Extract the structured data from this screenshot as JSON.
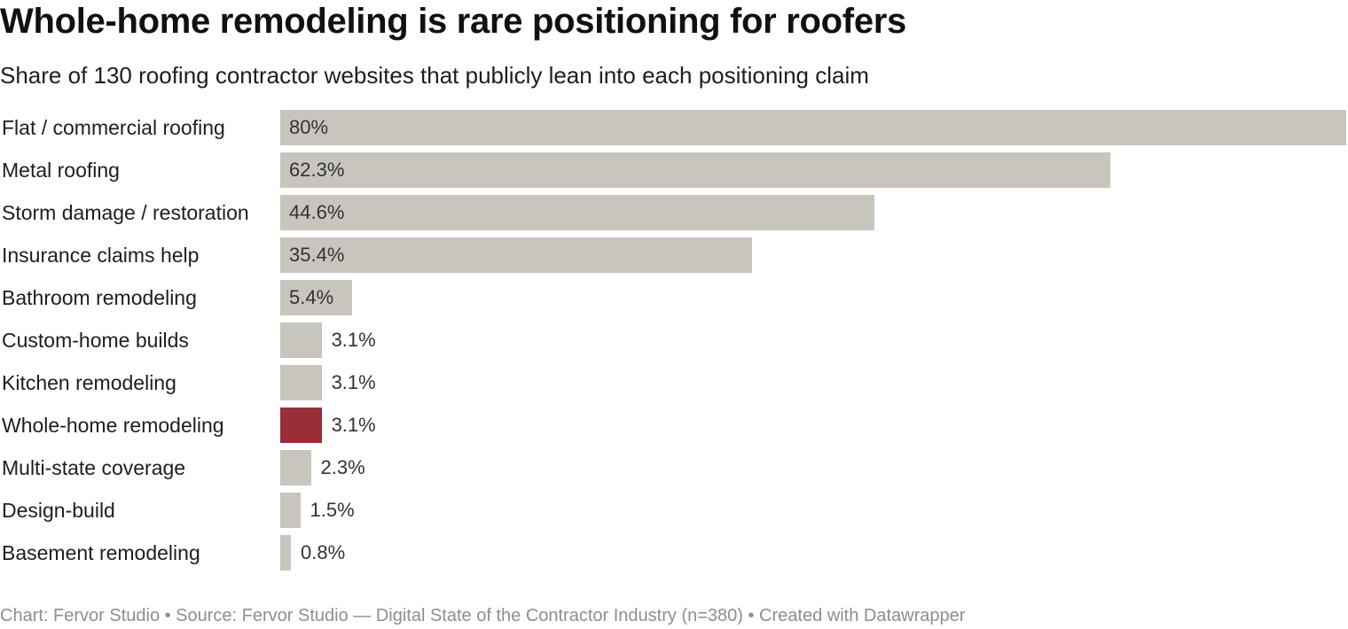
{
  "title": "Whole-home remodeling is rare positioning for roofers",
  "subtitle": "Share of 130 roofing contractor websites that publicly lean into each positioning claim",
  "footer": "Chart: Fervor Studio • Source: Fervor Studio — Digital State of the Contractor Industry (n=380) • Created with Datawrapper",
  "colors": {
    "default_bar": "#c8c5bf",
    "highlight_bar": "#992e39"
  },
  "chart_data": {
    "type": "bar",
    "orientation": "horizontal",
    "categories": [
      "Flat / commercial roofing",
      "Metal roofing",
      "Storm damage / restoration",
      "Insurance claims help",
      "Bathroom remodeling",
      "Custom-home builds",
      "Kitchen remodeling",
      "Whole-home remodeling",
      "Multi-state coverage",
      "Design-build",
      "Basement remodeling"
    ],
    "values": [
      80,
      62.3,
      44.6,
      35.4,
      5.4,
      3.1,
      3.1,
      3.1,
      2.3,
      1.5,
      0.8
    ],
    "value_labels": [
      "80%",
      "62.3%",
      "44.6%",
      "35.4%",
      "5.4%",
      "3.1%",
      "3.1%",
      "3.1%",
      "2.3%",
      "1.5%",
      "0.8%"
    ],
    "highlight": "Whole-home remodeling",
    "xlim": [
      0,
      80
    ],
    "grid": false,
    "legend": "none"
  }
}
